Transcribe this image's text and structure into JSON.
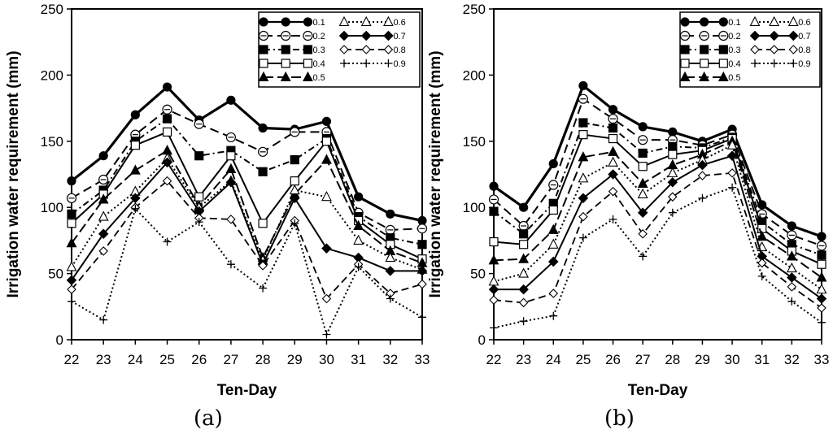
{
  "charts": [
    {
      "id": "a",
      "caption": "(a)",
      "ylabel": "Irrigation water requirement (mm)",
      "xlabel": "Ten-Day",
      "ytick_labels": [
        "0",
        "50",
        "100",
        "150",
        "200",
        "250"
      ],
      "xtick_labels": [
        "22",
        "23",
        "24",
        "25",
        "26",
        "27",
        "28",
        "29",
        "30",
        "31",
        "32",
        "33"
      ]
    },
    {
      "id": "b",
      "caption": "(b)",
      "ylabel": "Irrigation water requirement (mm)",
      "xlabel": "Ten-Day",
      "ytick_labels": [
        "0",
        "50",
        "100",
        "150",
        "200",
        "250"
      ],
      "xtick_labels": [
        "22",
        "23",
        "24",
        "25",
        "26",
        "27",
        "28",
        "29",
        "30",
        "31",
        "32",
        "33"
      ]
    }
  ],
  "legend_labels": [
    "0.1",
    "0.2",
    "0.3",
    "0.4",
    "0.5",
    "0.6",
    "0.7",
    "0.8",
    "0.9"
  ],
  "chart_data": [
    {
      "type": "line",
      "title": "(a)",
      "xlabel": "Ten-Day",
      "ylabel": "Irrigation water requirement (mm)",
      "x": [
        22,
        23,
        24,
        25,
        26,
        27,
        28,
        29,
        30,
        31,
        32,
        33
      ],
      "xlim": [
        22,
        33
      ],
      "ylim": [
        0,
        250
      ],
      "legend": "top-right",
      "grid": false,
      "series": [
        {
          "name": "0.1",
          "values": [
            120,
            139,
            170,
            191,
            166,
            181,
            160,
            159,
            165,
            108,
            95,
            90
          ]
        },
        {
          "name": "0.2",
          "values": [
            107,
            121,
            155,
            174,
            163,
            153,
            142,
            157,
            157,
            96,
            83,
            84
          ]
        },
        {
          "name": "0.3",
          "values": [
            95,
            113,
            150,
            167,
            139,
            143,
            127,
            136,
            152,
            93,
            77,
            72
          ]
        },
        {
          "name": "0.4",
          "values": [
            88,
            110,
            147,
            157,
            108,
            139,
            88,
            120,
            150,
            90,
            72,
            61
          ]
        },
        {
          "name": "0.5",
          "values": [
            73,
            106,
            128,
            143,
            101,
            129,
            62,
            110,
            136,
            86,
            67,
            58
          ]
        },
        {
          "name": "0.6",
          "values": [
            55,
            93,
            112,
            137,
            100,
            120,
            60,
            113,
            108,
            75,
            62,
            53
          ]
        },
        {
          "name": "0.7",
          "values": [
            45,
            80,
            107,
            134,
            97,
            119,
            57,
            107,
            69,
            62,
            52,
            52
          ]
        },
        {
          "name": "0.8",
          "values": [
            38,
            67,
            100,
            120,
            92,
            91,
            56,
            90,
            31,
            57,
            35,
            42
          ]
        },
        {
          "name": "0.9",
          "values": [
            29,
            15,
            99,
            74,
            89,
            57,
            39,
            88,
            4,
            55,
            31,
            17
          ]
        }
      ]
    },
    {
      "type": "line",
      "title": "(b)",
      "xlabel": "Ten-Day",
      "ylabel": "Irrigation water requirement (mm)",
      "x": [
        22,
        23,
        24,
        25,
        26,
        27,
        28,
        29,
        30,
        31,
        32,
        33
      ],
      "xlim": [
        22,
        33
      ],
      "ylim": [
        0,
        250
      ],
      "legend": "top-right",
      "grid": false,
      "series": [
        {
          "name": "0.1",
          "values": [
            116,
            100,
            133,
            192,
            174,
            161,
            157,
            150,
            159,
            102,
            86,
            78
          ]
        },
        {
          "name": "0.2",
          "values": [
            106,
            86,
            117,
            182,
            167,
            151,
            151,
            147,
            155,
            95,
            79,
            71
          ]
        },
        {
          "name": "0.3",
          "values": [
            97,
            80,
            103,
            164,
            160,
            141,
            146,
            145,
            153,
            89,
            72,
            64
          ]
        },
        {
          "name": "0.4",
          "values": [
            74,
            72,
            98,
            155,
            152,
            131,
            140,
            143,
            152,
            84,
            67,
            57
          ]
        },
        {
          "name": "0.5",
          "values": [
            60,
            61,
            83,
            138,
            142,
            118,
            132,
            140,
            150,
            78,
            63,
            47
          ]
        },
        {
          "name": "0.6",
          "values": [
            44,
            50,
            72,
            122,
            134,
            110,
            126,
            136,
            147,
            70,
            54,
            38
          ]
        },
        {
          "name": "0.7",
          "values": [
            38,
            38,
            59,
            107,
            125,
            96,
            119,
            132,
            139,
            63,
            47,
            31
          ]
        },
        {
          "name": "0.8",
          "values": [
            30,
            28,
            35,
            93,
            112,
            80,
            108,
            124,
            126,
            58,
            40,
            24
          ]
        },
        {
          "name": "0.9",
          "values": [
            9,
            14,
            18,
            77,
            91,
            63,
            96,
            107,
            115,
            48,
            29,
            13
          ]
        }
      ]
    }
  ]
}
